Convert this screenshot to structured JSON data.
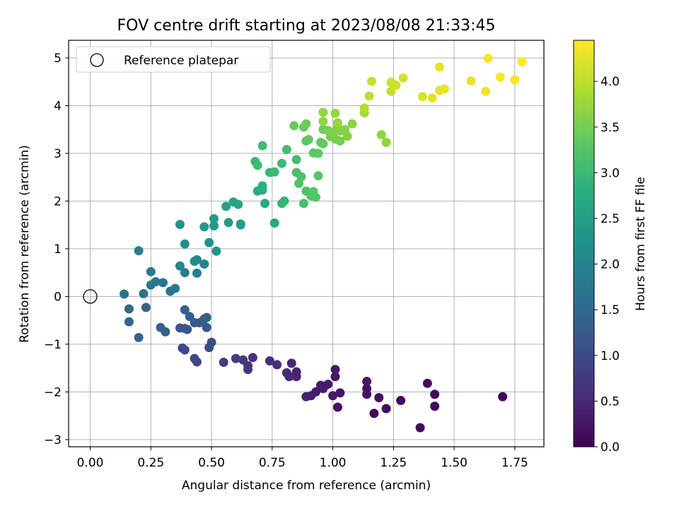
{
  "chart_data": {
    "type": "scatter",
    "title": "FOV centre drift starting at 2023/08/08 21:33:45",
    "xlabel": "Angular distance from reference (arcmin)",
    "ylabel": "Rotation from reference (arcmin)",
    "xlim": [
      -0.089,
      1.87
    ],
    "ylim": [
      -3.15,
      5.37
    ],
    "xticks": [
      "0.00",
      "0.25",
      "0.50",
      "0.75",
      "1.00",
      "1.25",
      "1.50",
      "1.75"
    ],
    "yticks": [
      "−3",
      "−2",
      "−1",
      "0",
      "1",
      "2",
      "3",
      "4",
      "5"
    ],
    "grid": true,
    "legend": {
      "placement": "top-left",
      "entries": [
        "Reference platepar"
      ]
    },
    "reference": {
      "x": 0,
      "y": 0
    },
    "colorbar": {
      "label": "Hours from first FF file",
      "range": [
        0,
        4.45
      ],
      "ticks": [
        "0.0",
        "0.5",
        "1.0",
        "1.5",
        "2.0",
        "2.5",
        "3.0",
        "3.5",
        "4.0"
      ],
      "colormap": "viridis"
    },
    "points": [
      [
        1.7,
        -2.1,
        0.05
      ],
      [
        1.36,
        -2.75,
        0.1
      ],
      [
        1.17,
        -2.45,
        0.12
      ],
      [
        1.22,
        -2.35,
        0.15
      ],
      [
        1.28,
        -2.18,
        0.12
      ],
      [
        1.42,
        -2.3,
        0.08
      ],
      [
        1.42,
        -2.05,
        0.1
      ],
      [
        1.39,
        -1.82,
        0.15
      ],
      [
        1.19,
        -2.12,
        0.18
      ],
      [
        1.14,
        -2.05,
        0.2
      ],
      [
        1.14,
        -1.93,
        0.22
      ],
      [
        1.14,
        -1.78,
        0.25
      ],
      [
        1.03,
        -2.02,
        0.25
      ],
      [
        1.02,
        -2.32,
        0.2
      ],
      [
        1.0,
        -2.08,
        0.3
      ],
      [
        1.01,
        -1.53,
        0.3
      ],
      [
        1.01,
        -1.68,
        0.28
      ],
      [
        0.98,
        -1.84,
        0.33
      ],
      [
        0.95,
        -1.86,
        0.35
      ],
      [
        0.96,
        -1.93,
        0.33
      ],
      [
        0.93,
        -2.0,
        0.35
      ],
      [
        0.91,
        -2.08,
        0.38
      ],
      [
        0.89,
        -2.1,
        0.4
      ],
      [
        0.85,
        -1.58,
        0.45
      ],
      [
        0.85,
        -1.68,
        0.45
      ],
      [
        0.83,
        -1.4,
        0.48
      ],
      [
        0.82,
        -1.68,
        0.5
      ],
      [
        0.81,
        -1.6,
        0.5
      ],
      [
        0.77,
        -1.43,
        0.55
      ],
      [
        0.74,
        -1.35,
        0.58
      ],
      [
        0.67,
        -1.28,
        0.65
      ],
      [
        0.65,
        -1.45,
        0.7
      ],
      [
        0.65,
        -1.53,
        0.72
      ],
      [
        0.63,
        -1.33,
        0.72
      ],
      [
        0.6,
        -1.3,
        0.75
      ],
      [
        0.55,
        -1.38,
        0.8
      ],
      [
        0.43,
        -1.3,
        0.9
      ],
      [
        0.44,
        -1.37,
        0.92
      ],
      [
        0.39,
        -1.12,
        0.95
      ],
      [
        0.38,
        -1.08,
        1.0
      ],
      [
        0.5,
        -0.96,
        1.0
      ],
      [
        0.49,
        -1.07,
        1.0
      ],
      [
        0.39,
        -0.67,
        1.15
      ],
      [
        0.4,
        -0.69,
        1.2
      ],
      [
        0.37,
        -0.66,
        1.2
      ],
      [
        0.48,
        -0.65,
        1.25
      ],
      [
        0.45,
        -0.55,
        1.25
      ],
      [
        0.43,
        -0.55,
        1.28
      ],
      [
        0.47,
        -0.47,
        1.3
      ],
      [
        0.48,
        -0.44,
        1.3
      ],
      [
        0.41,
        -0.42,
        1.32
      ],
      [
        0.39,
        -0.28,
        1.35
      ],
      [
        0.31,
        -0.74,
        1.35
      ],
      [
        0.29,
        -0.65,
        1.35
      ],
      [
        0.2,
        -0.86,
        1.4
      ],
      [
        0.23,
        -0.23,
        1.45
      ],
      [
        0.16,
        -0.26,
        1.5
      ],
      [
        0.16,
        -0.53,
        1.45
      ],
      [
        0.14,
        0.05,
        1.65
      ],
      [
        0.22,
        0.06,
        1.68
      ],
      [
        0.25,
        0.24,
        1.75
      ],
      [
        0.27,
        0.31,
        1.78
      ],
      [
        0.3,
        0.29,
        1.8
      ],
      [
        0.25,
        0.52,
        1.8
      ],
      [
        0.33,
        0.11,
        1.72
      ],
      [
        0.35,
        0.17,
        1.75
      ],
      [
        0.2,
        0.96,
        1.9
      ],
      [
        0.39,
        0.5,
        1.9
      ],
      [
        0.44,
        0.49,
        1.95
      ],
      [
        0.47,
        0.68,
        2.0
      ],
      [
        0.37,
        0.64,
        2.05
      ],
      [
        0.43,
        0.74,
        2.1
      ],
      [
        0.44,
        0.77,
        2.1
      ],
      [
        0.39,
        1.1,
        2.2
      ],
      [
        0.49,
        1.13,
        2.25
      ],
      [
        0.52,
        0.95,
        2.3
      ],
      [
        0.37,
        1.51,
        2.3
      ],
      [
        0.47,
        1.46,
        2.35
      ],
      [
        0.51,
        1.48,
        2.4
      ],
      [
        0.51,
        1.63,
        2.45
      ],
      [
        0.57,
        1.55,
        2.45
      ],
      [
        0.62,
        1.5,
        2.5
      ],
      [
        0.62,
        1.52,
        2.5
      ],
      [
        0.56,
        1.89,
        2.55
      ],
      [
        0.59,
        1.98,
        2.6
      ],
      [
        0.61,
        1.93,
        2.6
      ],
      [
        0.72,
        1.95,
        2.7
      ],
      [
        0.69,
        2.21,
        2.75
      ],
      [
        0.71,
        2.23,
        2.8
      ],
      [
        0.71,
        2.32,
        2.82
      ],
      [
        0.76,
        1.54,
        2.7
      ],
      [
        0.79,
        1.95,
        2.9
      ],
      [
        0.8,
        2.0,
        2.92
      ],
      [
        0.74,
        2.6,
        2.95
      ],
      [
        0.76,
        2.61,
        3.0
      ],
      [
        0.79,
        2.79,
        3.02
      ],
      [
        0.68,
        2.83,
        3.0
      ],
      [
        0.69,
        2.75,
        3.02
      ],
      [
        0.71,
        3.16,
        3.05
      ],
      [
        0.81,
        3.08,
        3.1
      ],
      [
        0.85,
        2.87,
        3.1
      ],
      [
        0.85,
        2.6,
        3.15
      ],
      [
        0.86,
        2.37,
        3.2
      ],
      [
        0.88,
        1.95,
        3.1
      ],
      [
        0.87,
        2.51,
        3.2
      ],
      [
        0.89,
        2.21,
        3.2
      ],
      [
        0.91,
        2.11,
        3.22
      ],
      [
        0.92,
        2.2,
        3.25
      ],
      [
        0.93,
        2.08,
        3.25
      ],
      [
        0.94,
        2.53,
        3.25
      ],
      [
        0.92,
        3.01,
        3.3
      ],
      [
        0.94,
        3.0,
        3.3
      ],
      [
        0.89,
        3.26,
        3.3
      ],
      [
        0.9,
        3.29,
        3.35
      ],
      [
        0.95,
        3.23,
        3.35
      ],
      [
        0.96,
        3.2,
        3.35
      ],
      [
        0.84,
        3.58,
        3.4
      ],
      [
        0.88,
        3.55,
        3.4
      ],
      [
        0.89,
        3.62,
        3.45
      ],
      [
        0.96,
        3.5,
        3.45
      ],
      [
        0.98,
        3.48,
        3.5
      ],
      [
        0.99,
        3.35,
        3.5
      ],
      [
        1.01,
        3.3,
        3.5
      ],
      [
        1.0,
        3.43,
        3.55
      ],
      [
        1.02,
        3.55,
        3.55
      ],
      [
        1.03,
        3.26,
        3.5
      ],
      [
        1.03,
        3.47,
        3.6
      ],
      [
        1.06,
        3.36,
        3.6
      ],
      [
        1.05,
        3.5,
        3.62
      ],
      [
        1.08,
        3.62,
        3.65
      ],
      [
        0.96,
        3.86,
        3.7
      ],
      [
        0.96,
        3.67,
        3.7
      ],
      [
        1.01,
        3.84,
        3.72
      ],
      [
        1.02,
        3.64,
        3.72
      ],
      [
        1.13,
        3.85,
        3.8
      ],
      [
        1.2,
        3.39,
        3.7
      ],
      [
        1.22,
        3.23,
        3.7
      ],
      [
        1.13,
        3.95,
        3.95
      ],
      [
        1.15,
        4.2,
        4.0
      ],
      [
        1.16,
        4.51,
        4.05
      ],
      [
        1.24,
        4.3,
        4.05
      ],
      [
        1.24,
        4.49,
        4.1
      ],
      [
        1.26,
        4.43,
        4.1
      ],
      [
        1.29,
        4.58,
        4.15
      ],
      [
        1.37,
        4.19,
        4.2
      ],
      [
        1.41,
        4.16,
        4.25
      ],
      [
        1.44,
        4.32,
        4.28
      ],
      [
        1.46,
        4.35,
        4.28
      ],
      [
        1.44,
        4.81,
        4.3
      ],
      [
        1.57,
        4.52,
        4.32
      ],
      [
        1.63,
        4.3,
        4.35
      ],
      [
        1.64,
        4.99,
        4.4
      ],
      [
        1.69,
        4.6,
        4.4
      ],
      [
        1.75,
        4.54,
        4.42
      ],
      [
        1.78,
        4.92,
        4.45
      ]
    ]
  }
}
